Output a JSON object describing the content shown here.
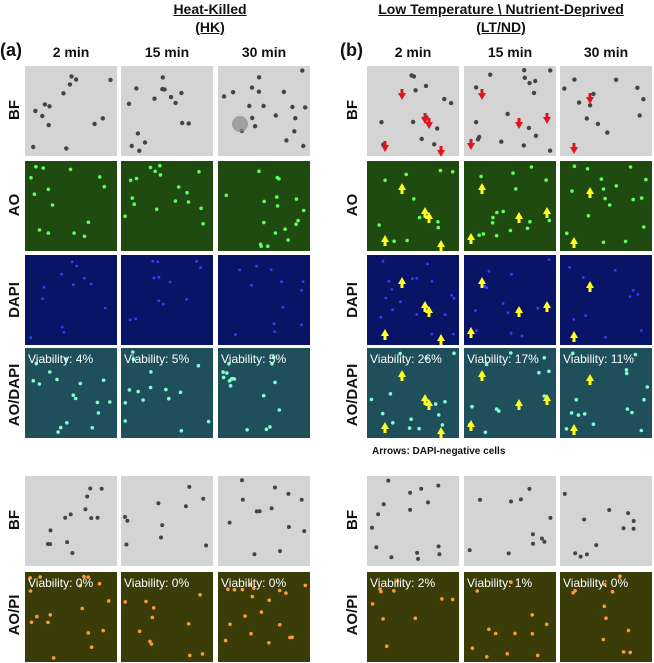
{
  "titles": {
    "hk_line1": "Heat-Killed",
    "hk_line2": "(HK)",
    "lt_line1": "Low Temperature \\ Nutrient-Deprived",
    "lt_line2": "(LT/ND)"
  },
  "panels": {
    "a": "(a)",
    "b": "(b)"
  },
  "times": [
    "2 min",
    "15 min",
    "30 min"
  ],
  "rows": {
    "bf": "BF",
    "ao": "AO",
    "dapi": "DAPI",
    "aodapi": "AO/DAPI",
    "aopi": "AO/PI"
  },
  "viability": {
    "hk_aodapi": [
      "Viability: 4%",
      "Viability: 5%",
      "Viability: 5%"
    ],
    "lt_aodapi": [
      "Viability: 26%",
      "Viability: 17%",
      "Viability: 11%"
    ],
    "hk_aopi": [
      "Viability: 0%",
      "Viability: 0%",
      "Viability: 0%"
    ],
    "lt_aopi": [
      "Viability: 2%",
      "Viability: 1%",
      "Viability: 0%"
    ]
  },
  "note": "Arrows: DAPI-negative cells",
  "colors": {
    "bf_bg": "#d4d4d4",
    "ao_bg": "#1f4a10",
    "dapi_bg": "#0a1466",
    "aodapi_bg": "#1e4f5a",
    "aopi_bg": "#3a3d08",
    "arrow_red": "#e0141e",
    "arrow_yellow": "#ffff20"
  }
}
